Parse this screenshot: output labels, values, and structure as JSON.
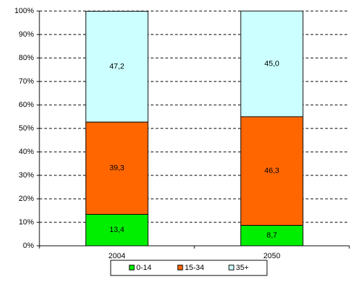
{
  "chart_data": {
    "type": "stacked_bar",
    "categories": [
      "2004",
      "2050"
    ],
    "series": [
      {
        "name": "0-14",
        "color": "#00ee00",
        "values": [
          13.4,
          8.7
        ],
        "value_labels": [
          "13,4",
          "8,7"
        ]
      },
      {
        "name": "15-34",
        "color": "#ff6600",
        "values": [
          39.3,
          46.3
        ],
        "value_labels": [
          "39,3",
          "46,3"
        ]
      },
      {
        "name": "35+",
        "color": "#ccffff",
        "values": [
          47.2,
          45
        ],
        "value_labels": [
          "47,2",
          "45,0"
        ]
      }
    ],
    "ylim": [
      0,
      100
    ],
    "yticks": [
      {
        "value": 0,
        "label": "0%"
      },
      {
        "value": 10,
        "label": "10%"
      },
      {
        "value": 20,
        "label": "20%"
      },
      {
        "value": 30,
        "label": "30%"
      },
      {
        "value": 40,
        "label": "40%"
      },
      {
        "value": 50,
        "label": "50%"
      },
      {
        "value": 60,
        "label": "60%"
      },
      {
        "value": 70,
        "label": "70%"
      },
      {
        "value": 80,
        "label": "80%"
      },
      {
        "value": 90,
        "label": "90%"
      },
      {
        "value": 100,
        "label": "100%"
      }
    ],
    "grid": true,
    "legend": "bottom"
  }
}
